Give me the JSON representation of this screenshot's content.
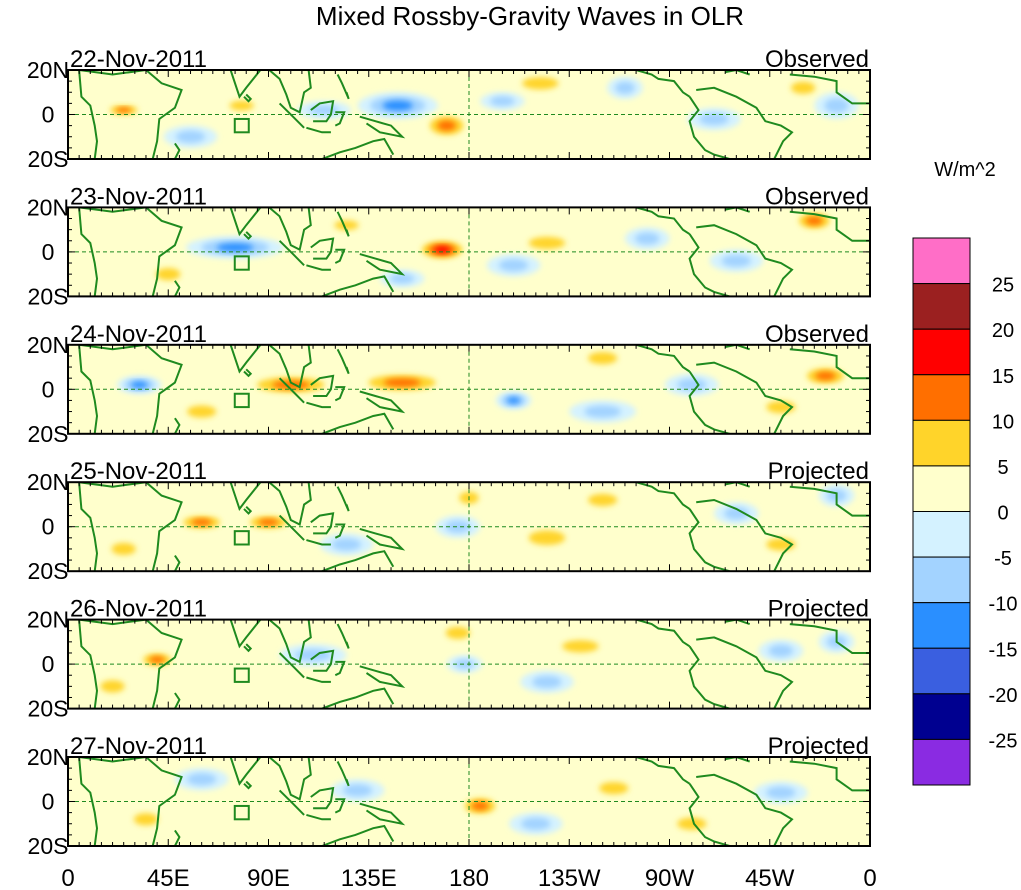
{
  "chart_data": {
    "type": "heatmap",
    "title": "Mixed Rossby-Gravity Waves in OLR",
    "units": "W/m^2",
    "x_tick_labels": [
      "0",
      "45E",
      "90E",
      "135E",
      "180",
      "135W",
      "90W",
      "45W",
      "0"
    ],
    "x_ticks_deg": [
      0,
      45,
      90,
      135,
      180,
      225,
      270,
      315,
      360
    ],
    "y_tick_labels": [
      "20N",
      "0",
      "20S"
    ],
    "y_ticks_deg": [
      20,
      0,
      -20
    ],
    "lat_range": [
      -20,
      20
    ],
    "lon_range": [
      0,
      360
    ],
    "colorbar": {
      "levels": [
        -25,
        -20,
        -15,
        -10,
        -5,
        0,
        5,
        10,
        15,
        20,
        25
      ],
      "tick_labels": [
        "25",
        "20",
        "15",
        "10",
        "5",
        "0",
        "-5",
        "-10",
        "-15",
        "-20",
        "-25"
      ],
      "colors_top_to_bottom": [
        "#ff6ec7",
        "#9b2020",
        "#ff0000",
        "#ff6f00",
        "#ffd42a",
        "#ffffcc",
        "#d4f2ff",
        "#a3d3ff",
        "#2a8fff",
        "#3a5fe0",
        "#000090",
        "#8a2be2"
      ]
    },
    "panels": [
      {
        "date": "22-Nov-2011",
        "status": "Observed",
        "anomalies": [
          {
            "lon": 25,
            "lat": 2,
            "rl": 9,
            "rt": 3,
            "v": 13
          },
          {
            "lon": 78,
            "lat": 4,
            "rl": 10,
            "rt": 4,
            "v": 8
          },
          {
            "lon": 148,
            "lat": 4,
            "rl": 18,
            "rt": 6,
            "v": -12
          },
          {
            "lon": 115,
            "lat": 2,
            "rl": 12,
            "rt": 4,
            "v": -8
          },
          {
            "lon": 170,
            "lat": -5,
            "rl": 11,
            "rt": 6,
            "v": 12
          },
          {
            "lon": 212,
            "lat": 14,
            "rl": 15,
            "rt": 5,
            "v": 6
          },
          {
            "lon": 250,
            "lat": 12,
            "rl": 8,
            "rt": 5,
            "v": -9
          },
          {
            "lon": 290,
            "lat": -2,
            "rl": 12,
            "rt": 5,
            "v": -6
          },
          {
            "lon": 330,
            "lat": 12,
            "rl": 10,
            "rt": 5,
            "v": 7
          },
          {
            "lon": 345,
            "lat": 4,
            "rl": 10,
            "rt": 6,
            "v": -8
          },
          {
            "lon": 55,
            "lat": -10,
            "rl": 12,
            "rt": 5,
            "v": -5
          },
          {
            "lon": 230,
            "lat": -8,
            "rl": 18,
            "rt": 6,
            "v": 4
          },
          {
            "lon": 195,
            "lat": 6,
            "rl": 10,
            "rt": 4,
            "v": -5
          }
        ]
      },
      {
        "date": "23-Nov-2011",
        "status": "Observed",
        "anomalies": [
          {
            "lon": 75,
            "lat": 2,
            "rl": 22,
            "rt": 5,
            "v": -12
          },
          {
            "lon": 168,
            "lat": 1,
            "rl": 12,
            "rt": 5,
            "v": 15
          },
          {
            "lon": 215,
            "lat": 4,
            "rl": 15,
            "rt": 5,
            "v": 9
          },
          {
            "lon": 335,
            "lat": 14,
            "rl": 10,
            "rt": 5,
            "v": 12
          },
          {
            "lon": 260,
            "lat": 6,
            "rl": 10,
            "rt": 5,
            "v": -8
          },
          {
            "lon": 200,
            "lat": -6,
            "rl": 12,
            "rt": 5,
            "v": -5
          },
          {
            "lon": 125,
            "lat": 12,
            "rl": 10,
            "rt": 4,
            "v": 5
          },
          {
            "lon": 300,
            "lat": -4,
            "rl": 12,
            "rt": 5,
            "v": -6
          },
          {
            "lon": 45,
            "lat": -10,
            "rl": 10,
            "rt": 5,
            "v": 5
          },
          {
            "lon": 150,
            "lat": -12,
            "rl": 10,
            "rt": 4,
            "v": -5
          }
        ]
      },
      {
        "date": "24-Nov-2011",
        "status": "Observed",
        "anomalies": [
          {
            "lon": 100,
            "lat": 2,
            "rl": 22,
            "rt": 5,
            "v": 14
          },
          {
            "lon": 150,
            "lat": 3,
            "rl": 22,
            "rt": 5,
            "v": 12
          },
          {
            "lon": 32,
            "lat": 2,
            "rl": 10,
            "rt": 4,
            "v": -10
          },
          {
            "lon": 340,
            "lat": 6,
            "rl": 12,
            "rt": 5,
            "v": 12
          },
          {
            "lon": 320,
            "lat": -8,
            "rl": 12,
            "rt": 5,
            "v": 7
          },
          {
            "lon": 200,
            "lat": -5,
            "rl": 8,
            "rt": 4,
            "v": -10
          },
          {
            "lon": 240,
            "lat": 14,
            "rl": 12,
            "rt": 5,
            "v": 8
          },
          {
            "lon": 280,
            "lat": 2,
            "rl": 12,
            "rt": 5,
            "v": -6
          },
          {
            "lon": 60,
            "lat": -10,
            "rl": 12,
            "rt": 5,
            "v": 5
          },
          {
            "lon": 240,
            "lat": -10,
            "rl": 15,
            "rt": 5,
            "v": -5
          }
        ]
      },
      {
        "date": "25-Nov-2011",
        "status": "Projected",
        "anomalies": [
          {
            "lon": 60,
            "lat": 2,
            "rl": 12,
            "rt": 4,
            "v": 10
          },
          {
            "lon": 90,
            "lat": 2,
            "rl": 12,
            "rt": 4,
            "v": 10
          },
          {
            "lon": 180,
            "lat": 13,
            "rl": 8,
            "rt": 5,
            "v": 7
          },
          {
            "lon": 175,
            "lat": 0,
            "rl": 10,
            "rt": 5,
            "v": -9
          },
          {
            "lon": 215,
            "lat": -5,
            "rl": 15,
            "rt": 6,
            "v": 7
          },
          {
            "lon": 240,
            "lat": 12,
            "rl": 12,
            "rt": 5,
            "v": 6
          },
          {
            "lon": 300,
            "lat": 6,
            "rl": 10,
            "rt": 5,
            "v": -6
          },
          {
            "lon": 345,
            "lat": 14,
            "rl": 8,
            "rt": 5,
            "v": -8
          },
          {
            "lon": 320,
            "lat": -8,
            "rl": 12,
            "rt": 5,
            "v": 5
          },
          {
            "lon": 125,
            "lat": -8,
            "rl": 12,
            "rt": 5,
            "v": -5
          },
          {
            "lon": 25,
            "lat": -10,
            "rl": 10,
            "rt": 5,
            "v": 5
          }
        ]
      },
      {
        "date": "26-Nov-2011",
        "status": "Projected",
        "anomalies": [
          {
            "lon": 40,
            "lat": 2,
            "rl": 9,
            "rt": 4,
            "v": 11
          },
          {
            "lon": 175,
            "lat": 14,
            "rl": 10,
            "rt": 5,
            "v": 8
          },
          {
            "lon": 178,
            "lat": 0,
            "rl": 8,
            "rt": 4,
            "v": -8
          },
          {
            "lon": 230,
            "lat": 8,
            "rl": 15,
            "rt": 5,
            "v": 5
          },
          {
            "lon": 320,
            "lat": 6,
            "rl": 10,
            "rt": 5,
            "v": -5
          },
          {
            "lon": 345,
            "lat": 10,
            "rl": 8,
            "rt": 5,
            "v": -7
          },
          {
            "lon": 20,
            "lat": -10,
            "rl": 10,
            "rt": 5,
            "v": 6
          },
          {
            "lon": 110,
            "lat": 4,
            "rl": 15,
            "rt": 5,
            "v": -6
          },
          {
            "lon": 215,
            "lat": -8,
            "rl": 12,
            "rt": 5,
            "v": -5
          }
        ]
      },
      {
        "date": "27-Nov-2011",
        "status": "Projected",
        "anomalies": [
          {
            "lon": 185,
            "lat": -2,
            "rl": 10,
            "rt": 5,
            "v": 10
          },
          {
            "lon": 130,
            "lat": 5,
            "rl": 12,
            "rt": 5,
            "v": -5
          },
          {
            "lon": 245,
            "lat": 6,
            "rl": 12,
            "rt": 5,
            "v": 6
          },
          {
            "lon": 320,
            "lat": 4,
            "rl": 12,
            "rt": 5,
            "v": -6
          },
          {
            "lon": 60,
            "lat": 10,
            "rl": 12,
            "rt": 5,
            "v": -5
          },
          {
            "lon": 35,
            "lat": -8,
            "rl": 10,
            "rt": 5,
            "v": 5
          },
          {
            "lon": 210,
            "lat": -10,
            "rl": 12,
            "rt": 5,
            "v": -6
          },
          {
            "lon": 280,
            "lat": -10,
            "rl": 12,
            "rt": 5,
            "v": 5
          }
        ]
      }
    ],
    "annotations": {
      "dashed_meridian_deg": 180,
      "dashed_parallel_deg": 0,
      "reference_box": "small square near 78E, 2S-8S"
    }
  }
}
